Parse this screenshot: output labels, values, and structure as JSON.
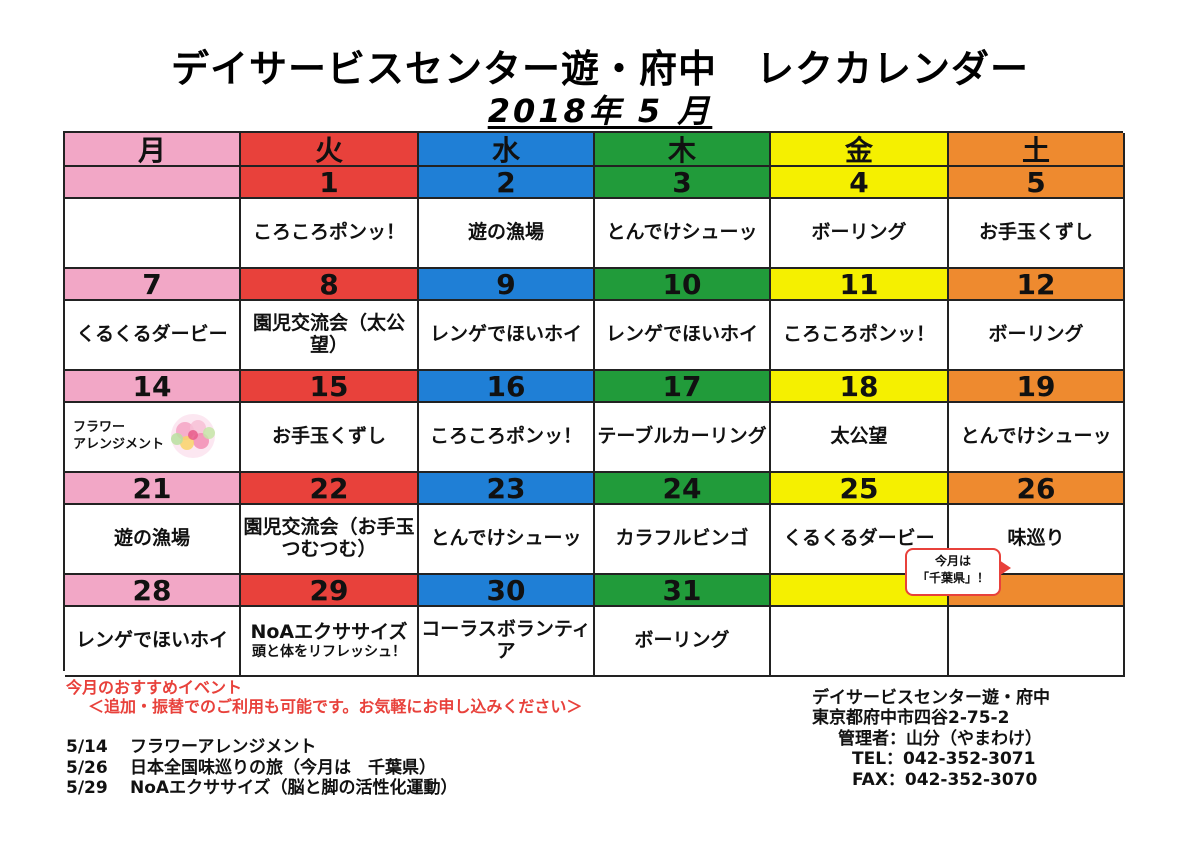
{
  "title": "デイサービスセンター遊・府中　レクカレンダー",
  "subtitle": "2018年 5 月",
  "weekdays": [
    "月",
    "火",
    "水",
    "木",
    "金",
    "土"
  ],
  "colors": {
    "mon": "#f2a7c6",
    "tue": "#e8413b",
    "wed": "#1f7fd6",
    "thu": "#219b3a",
    "fri": "#f5f000",
    "sat": "#ee8a2f",
    "accent_red": "#e8413b"
  },
  "weeks": [
    {
      "dates": [
        "",
        "1",
        "2",
        "3",
        "4",
        "5"
      ],
      "events": [
        "",
        "ころころポンッ！",
        "遊の漁場",
        "とんでけシューッ",
        "ボーリング",
        "お手玉くずし"
      ]
    },
    {
      "dates": [
        "7",
        "8",
        "9",
        "10",
        "11",
        "12"
      ],
      "events": [
        "くるくるダービー",
        "園児交流会（太公望）",
        "レンゲでほいホイ",
        "レンゲでほいホイ",
        "ころころポンッ！",
        "ボーリング"
      ]
    },
    {
      "dates": [
        "14",
        "15",
        "16",
        "17",
        "18",
        "19"
      ],
      "events": [
        "フラワーアレンジメント",
        "お手玉くずし",
        "ころころポンッ！",
        "テーブルカーリング",
        "太公望",
        "とんでけシューッ"
      ]
    },
    {
      "dates": [
        "21",
        "22",
        "23",
        "24",
        "25",
        "26"
      ],
      "events": [
        "遊の漁場",
        "園児交流会（お手玉つむつむ）",
        "とんでけシューッ",
        "カラフルビンゴ",
        "くるくるダービー",
        "味巡り"
      ]
    },
    {
      "dates": [
        "28",
        "29",
        "30",
        "31",
        "",
        ""
      ],
      "events": [
        "レンゲでほいホイ",
        "NoAエクササイズ",
        "コーラスボランティア",
        "ボーリング",
        "",
        ""
      ],
      "event_sub": [
        "",
        "頭と体をリフレッシュ！",
        "",
        "",
        "",
        ""
      ]
    }
  ],
  "flower_icon": "flower-bouquet-icon",
  "callout": {
    "line1": "今月は",
    "line2": "「千葉県」！"
  },
  "recommend": {
    "heading": "今月のおすすめイベント",
    "note": "＜追加・振替でのご利用も可能です。お気軽にお申し込みください＞",
    "items": [
      {
        "date": "5/14",
        "text": "フラワーアレンジメント"
      },
      {
        "date": "5/26",
        "text": "日本全国味巡りの旅（今月は　千葉県）"
      },
      {
        "date": "5/29",
        "text": "NoAエクササイズ（脳と脚の活性化運動）"
      }
    ]
  },
  "organization": {
    "name": "デイサービスセンター遊・府中",
    "address": "東京都府中市四谷2-75-2",
    "manager": "管理者：山分（やまわけ）",
    "tel": "TEL：042-352-3071",
    "fax": "FAX：042-352-3070"
  }
}
